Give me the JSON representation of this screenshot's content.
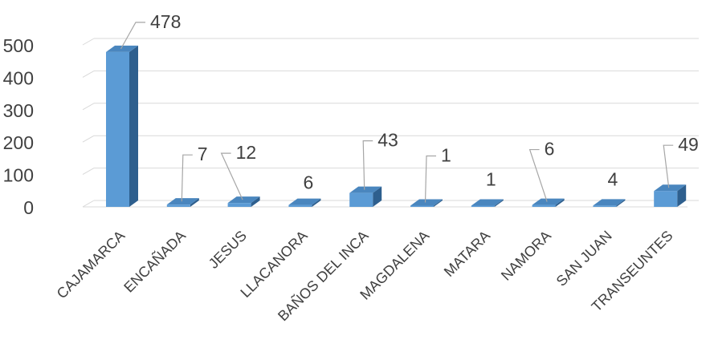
{
  "chart_data": {
    "type": "bar",
    "style": "3d-column",
    "categories": [
      "CAJAMARCA",
      "ENCAÑADA",
      "JESUS",
      "LLACANORA",
      "BAÑOS DEL INCA",
      "MAGDALENA",
      "MATARA",
      "NAMORA",
      "SAN JUAN",
      "TRANSEUNTES"
    ],
    "values": [
      478,
      7,
      12,
      6,
      43,
      1,
      1,
      6,
      4,
      49
    ],
    "data_labels": [
      "478",
      "7",
      "12",
      "6",
      "43",
      "1",
      "1",
      "6",
      "4",
      "49"
    ],
    "ylim": [
      0,
      500
    ],
    "yticks": [
      "0",
      "100",
      "200",
      "300",
      "400",
      "500"
    ],
    "title": "",
    "xlabel": "",
    "ylabel": "",
    "grid": true,
    "legend": "none",
    "colors": {
      "bar_front": "#5b9bd5",
      "bar_top": "#4a86be",
      "bar_side": "#2e5f8e",
      "gridline": "#d9d9d9",
      "leader": "#a6a6a6",
      "text": "#404040"
    }
  }
}
